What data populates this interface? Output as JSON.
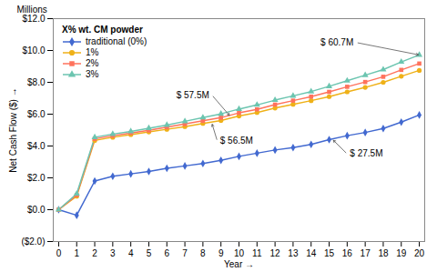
{
  "chart_data": {
    "type": "line",
    "xlabel": "Year",
    "ylabel": "Net Cash Flow ($)",
    "x": [
      0,
      1,
      2,
      3,
      4,
      5,
      6,
      7,
      8,
      9,
      10,
      11,
      12,
      13,
      14,
      15,
      16,
      17,
      18,
      19,
      20
    ],
    "series": [
      {
        "name": "traditional (0%)",
        "marker": "diamond",
        "values": [
          0,
          -0.35,
          1.8,
          2.1,
          2.25,
          2.4,
          2.6,
          2.75,
          2.9,
          3.1,
          3.35,
          3.55,
          3.75,
          3.9,
          4.1,
          4.4,
          4.65,
          4.85,
          5.1,
          5.5,
          5.95
        ]
      },
      {
        "name": "1%",
        "marker": "circle",
        "values": [
          0,
          0.85,
          4.35,
          4.55,
          4.72,
          4.88,
          5.05,
          5.22,
          5.42,
          5.6,
          5.88,
          6.1,
          6.38,
          6.62,
          6.85,
          7.1,
          7.4,
          7.68,
          8.0,
          8.38,
          8.75
        ]
      },
      {
        "name": "2%",
        "marker": "square",
        "values": [
          0,
          0.92,
          4.45,
          4.65,
          4.82,
          4.98,
          5.18,
          5.38,
          5.58,
          5.78,
          6.08,
          6.3,
          6.6,
          6.85,
          7.1,
          7.4,
          7.72,
          8.02,
          8.35,
          8.78,
          9.18
        ]
      },
      {
        "name": "3%",
        "marker": "triangle",
        "values": [
          0,
          1.0,
          4.55,
          4.75,
          4.92,
          5.12,
          5.32,
          5.55,
          5.78,
          6.02,
          6.32,
          6.58,
          6.88,
          7.15,
          7.42,
          7.75,
          8.1,
          8.45,
          8.8,
          9.28,
          9.72
        ]
      }
    ],
    "xlim": [
      -0.3,
      20.3
    ],
    "xticks": [
      0,
      1,
      2,
      3,
      4,
      5,
      6,
      7,
      8,
      9,
      10,
      11,
      12,
      13,
      14,
      15,
      16,
      17,
      18,
      19,
      20
    ],
    "ylim": [
      -2,
      12
    ],
    "yticks": [
      {
        "value": -2,
        "label": "($2.0)"
      },
      {
        "value": 0,
        "label": "$0.0"
      },
      {
        "value": 2,
        "label": "$2.0"
      },
      {
        "value": 4,
        "label": "$4.0"
      },
      {
        "value": 6,
        "label": "$6.0"
      },
      {
        "value": 8,
        "label": "$8.0"
      },
      {
        "value": 10,
        "label": "$10.0"
      },
      {
        "value": 12,
        "label": "$12.0"
      }
    ],
    "grid": false,
    "legend": "upper left",
    "legend_title": "X% wt. CM powder",
    "annotations": [
      {
        "text": "Millions"
      },
      {
        "text": "$ 27.5M",
        "x": 16.0,
        "y": 3.5,
        "arrow_to": [
          15.2,
          4.4
        ]
      },
      {
        "text": "$ 56.5M",
        "x": 8.8,
        "y": 4.3,
        "arrow_to": [
          8.5,
          5.42
        ]
      },
      {
        "text": "$ 57.5M",
        "x": 8.5,
        "y": 7.2,
        "arrow_to": [
          9.5,
          5.88
        ]
      },
      {
        "text": "$ 60.7M",
        "x": 16.5,
        "y": 10.5,
        "arrow_to": [
          20.0,
          9.72
        ]
      }
    ]
  }
}
